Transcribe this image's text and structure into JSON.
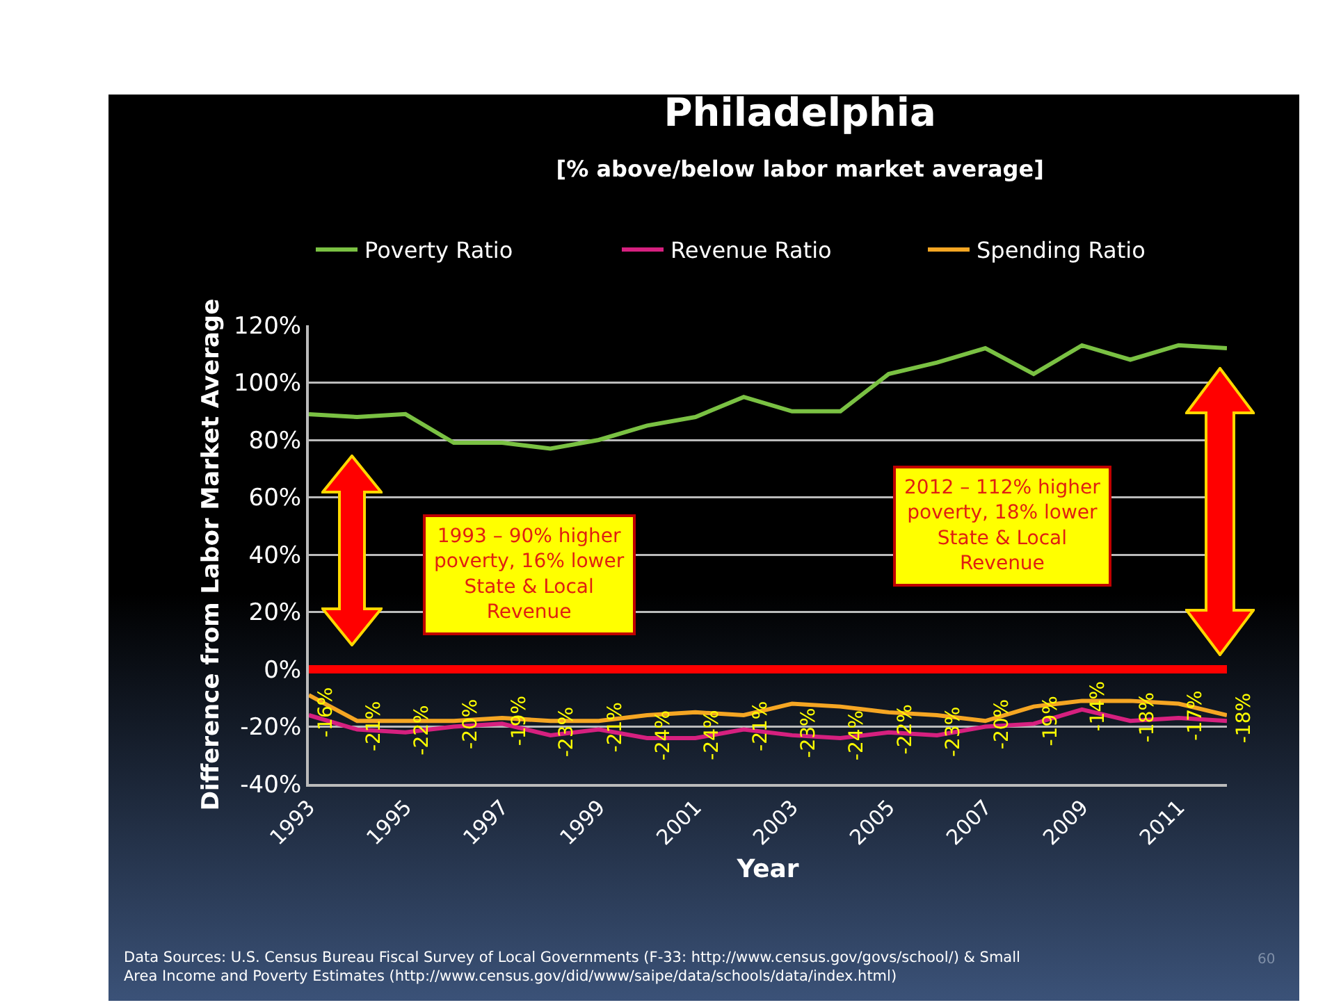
{
  "chart_data": {
    "type": "line",
    "title": "Philadelphia",
    "subtitle": "[% above/below labor market average]",
    "xlabel": "Year",
    "ylabel": "Difference from Labor Market Average",
    "x": [
      1993,
      1994,
      1995,
      1996,
      1997,
      1998,
      1999,
      2000,
      2001,
      2002,
      2003,
      2004,
      2005,
      2006,
      2007,
      2008,
      2009,
      2010,
      2011,
      2012
    ],
    "series": [
      {
        "name": "Poverty Ratio",
        "color": "#7ac143",
        "values": [
          89,
          88,
          89,
          79,
          79,
          77,
          80,
          85,
          88,
          95,
          90,
          90,
          103,
          107,
          112,
          103,
          113,
          108,
          113,
          112
        ]
      },
      {
        "name": "Revenue Ratio",
        "color": "#d6207f",
        "values": [
          -16,
          -21,
          -22,
          -20,
          -19,
          -23,
          -21,
          -24,
          -24,
          -21,
          -23,
          -24,
          -22,
          -23,
          -20,
          -19,
          -14,
          -18,
          -17,
          -18
        ],
        "value_labels": [
          "-16%",
          "-21%",
          "-22%",
          "-20%",
          "-19%",
          "-23%",
          "-21%",
          "-24%",
          "-24%",
          "-21%",
          "-23%",
          "-24%",
          "-22%",
          "-23%",
          "-20%",
          "-19%",
          "-14%",
          "-18%",
          "-17%",
          "-18%"
        ]
      },
      {
        "name": "Spending Ratio",
        "color": "#f5a623",
        "values": [
          -9,
          -18,
          -18,
          -18,
          -17,
          -18,
          -18,
          -16,
          -15,
          -16,
          -12,
          -13,
          -15,
          -16,
          -18,
          -13,
          -11,
          -11,
          -12,
          -16
        ]
      }
    ],
    "xlim": [
      1993,
      2012
    ],
    "xticks": [
      1993,
      1995,
      1997,
      1999,
      2001,
      2003,
      2005,
      2007,
      2009,
      2011
    ],
    "ylim": [
      -40,
      120
    ],
    "yticks": [
      {
        "value": -40,
        "label": "-40%"
      },
      {
        "value": -20,
        "label": "-20%"
      },
      {
        "value": 0,
        "label": "0%"
      },
      {
        "value": 20,
        "label": "20%"
      },
      {
        "value": 40,
        "label": "40%"
      },
      {
        "value": 60,
        "label": "60%"
      },
      {
        "value": 80,
        "label": "80%"
      },
      {
        "value": 100,
        "label": "100%"
      },
      {
        "value": 120,
        "label": "120%"
      }
    ],
    "grid": "y",
    "legend": "top",
    "ref_lines": [
      {
        "axis": "y",
        "value": 0,
        "color": "#ff0000"
      }
    ],
    "annotations": [
      "1993 – 90% higher poverty, 16% lower State & Local Revenue",
      "2012 – 112% higher poverty, 18% lower State & Local Revenue",
      "Data Sources: U.S. Census Bureau Fiscal Survey of Local Governments (F-33: http://www.census.gov/govs/school/) & Small Area Income and Poverty Estimates (http://www.census.gov/did/www/saipe/data/schools/data/index.html)",
      "60"
    ]
  }
}
